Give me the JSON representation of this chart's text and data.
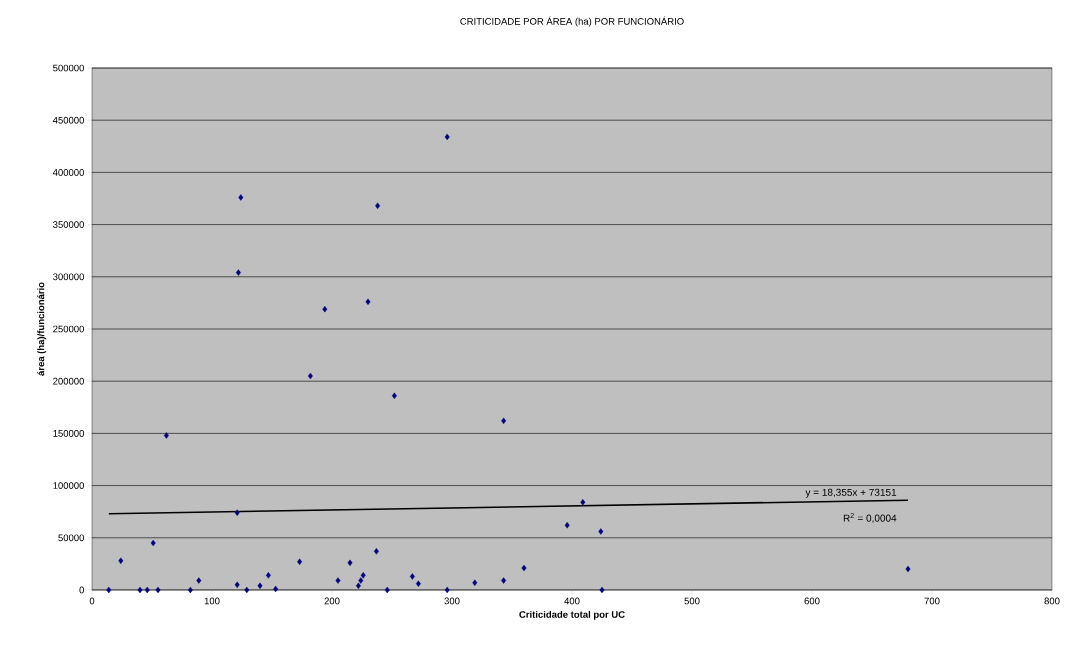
{
  "chart_data": {
    "type": "scatter",
    "title": "CRITICIDADE POR ÁREA (ha) POR FUNCIONÁRIO",
    "xlabel": "Criticidade total por UC",
    "ylabel": "área (ha)/funcionário",
    "xlim": [
      0,
      800
    ],
    "xticks": [
      0,
      100,
      200,
      300,
      400,
      500,
      600,
      700,
      800
    ],
    "ylim": [
      0,
      500000
    ],
    "yticks": [
      0,
      50000,
      100000,
      150000,
      200000,
      250000,
      300000,
      350000,
      400000,
      450000,
      500000
    ],
    "grid": "y",
    "marker": "diamond",
    "series": [
      {
        "color": "#000080",
        "x": [
          14,
          24,
          40,
          46,
          51,
          55,
          62,
          82,
          89,
          121,
          121,
          122,
          124,
          129,
          140,
          147,
          153,
          173,
          182,
          194,
          205,
          215,
          222,
          224,
          226,
          230,
          237,
          238,
          246,
          252,
          267,
          272,
          296,
          296,
          319,
          343,
          343,
          360,
          396,
          409,
          424,
          425,
          680
        ],
        "values": [
          0,
          28000,
          0,
          0,
          45000,
          0,
          148000,
          0,
          9000,
          74000,
          5000,
          304000,
          376000,
          0,
          4000,
          14000,
          1000,
          27000,
          205000,
          269000,
          9000,
          26000,
          4000,
          9000,
          14000,
          276000,
          37000,
          368000,
          0,
          186000,
          13000,
          6000,
          434000,
          0,
          7000,
          162000,
          9000,
          21000,
          62000,
          84000,
          56000,
          0,
          20000
        ]
      },
      {
        "color": "#000000",
        "type": "line",
        "marker": "none",
        "x": [
          14,
          680
        ],
        "values": [
          73000,
          86000
        ]
      }
    ],
    "annotations": [
      "y = 18,355x + 73151",
      "R$^{2}$ = 0,0004"
    ]
  }
}
